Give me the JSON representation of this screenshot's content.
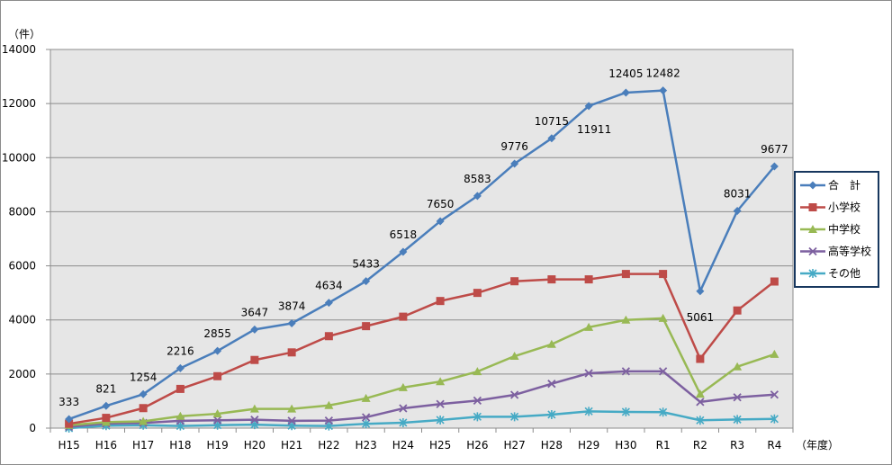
{
  "chart_data": {
    "type": "line",
    "y_unit_label": "（件）",
    "x_unit_label": "（年度）",
    "ylim": [
      0,
      14000
    ],
    "yticks": [
      0,
      2000,
      4000,
      6000,
      8000,
      10000,
      12000,
      14000
    ],
    "grid": true,
    "legend_position": "right",
    "categories": [
      "H15",
      "H16",
      "H17",
      "H18",
      "H19",
      "H20",
      "H21",
      "H22",
      "H23",
      "H24",
      "H25",
      "H26",
      "H27",
      "H28",
      "H29",
      "H30",
      "R1",
      "R2",
      "R3",
      "R4"
    ],
    "series": [
      {
        "name": "合　計",
        "color": "#4a7ebb",
        "marker": "diamond",
        "values": [
          333,
          821,
          1254,
          2216,
          2855,
          3647,
          3874,
          4634,
          5433,
          6518,
          7650,
          8583,
          9776,
          10715,
          11911,
          12405,
          12482,
          5061,
          8031,
          9677
        ],
        "labels": [
          "333",
          "821",
          "1254",
          "2216",
          "2855",
          "3647",
          "3874",
          "4634",
          "5433",
          "6518",
          "7650",
          "8583",
          "9776",
          "10715",
          "11911",
          "12405",
          "12482",
          "5061",
          "8031",
          "9677"
        ]
      },
      {
        "name": "小学校",
        "color": "#be4b48",
        "marker": "square",
        "values": [
          160,
          380,
          740,
          1450,
          1920,
          2520,
          2800,
          3400,
          3770,
          4120,
          4700,
          5000,
          5430,
          5500,
          5500,
          5700,
          5700,
          2560,
          4350,
          5420
        ]
      },
      {
        "name": "中学校",
        "color": "#98b954",
        "marker": "triangle",
        "values": [
          110,
          220,
          250,
          440,
          530,
          710,
          710,
          840,
          1100,
          1500,
          1720,
          2090,
          2660,
          3100,
          3730,
          4000,
          4060,
          1260,
          2270,
          2730
        ]
      },
      {
        "name": "高等学校",
        "color": "#7d60a0",
        "marker": "x",
        "values": [
          50,
          170,
          190,
          270,
          290,
          310,
          270,
          280,
          400,
          730,
          890,
          1020,
          1230,
          1640,
          2030,
          2100,
          2100,
          970,
          1140,
          1240
        ]
      },
      {
        "name": "その他",
        "color": "#46aac5",
        "marker": "star",
        "values": [
          0,
          90,
          110,
          80,
          110,
          130,
          90,
          80,
          160,
          200,
          300,
          420,
          420,
          500,
          620,
          600,
          590,
          290,
          320,
          340
        ]
      }
    ]
  }
}
